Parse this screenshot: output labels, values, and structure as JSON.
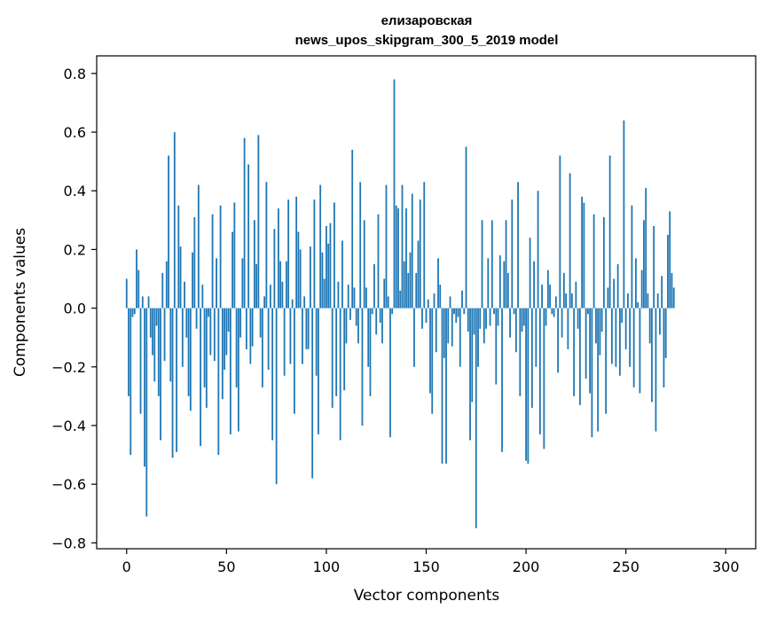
{
  "chart_data": {
    "type": "bar",
    "title_line1": "елизаровская",
    "title_line2": "news_upos_skipgram_300_5_2019 model",
    "xlabel": "Vector components",
    "ylabel": "Components values",
    "xlim": [
      -15,
      315
    ],
    "ylim": [
      -0.82,
      0.86
    ],
    "xticks": [
      0,
      50,
      100,
      150,
      200,
      250,
      300
    ],
    "xtick_labels": [
      "0",
      "50",
      "100",
      "150",
      "200",
      "250",
      "300"
    ],
    "yticks": [
      -0.8,
      -0.6,
      -0.4,
      -0.2,
      0.0,
      0.2,
      0.4,
      0.6,
      0.8
    ],
    "ytick_labels": [
      "−0.8",
      "−0.6",
      "−0.4",
      "−0.2",
      "0.0",
      "0.2",
      "0.4",
      "0.6",
      "0.8"
    ],
    "values": [
      0.1,
      -0.3,
      -0.5,
      -0.03,
      -0.02,
      0.2,
      0.13,
      -0.36,
      0.04,
      -0.54,
      -0.71,
      0.04,
      -0.1,
      -0.16,
      -0.25,
      -0.06,
      -0.3,
      -0.45,
      0.12,
      -0.18,
      0.16,
      0.52,
      -0.25,
      -0.51,
      0.6,
      -0.49,
      0.35,
      0.21,
      -0.2,
      0.09,
      -0.1,
      -0.3,
      -0.35,
      0.19,
      0.31,
      -0.07,
      0.42,
      -0.47,
      0.08,
      -0.27,
      -0.34,
      -0.03,
      -0.16,
      0.32,
      -0.18,
      0.17,
      -0.5,
      0.35,
      -0.31,
      -0.21,
      -0.16,
      -0.08,
      -0.43,
      0.26,
      0.36,
      -0.27,
      -0.42,
      -0.1,
      0.17,
      0.58,
      -0.14,
      0.49,
      -0.19,
      -0.13,
      0.3,
      0.15,
      0.59,
      -0.1,
      -0.27,
      0.04,
      0.43,
      -0.21,
      0.08,
      -0.45,
      0.27,
      -0.6,
      0.34,
      0.16,
      0.09,
      -0.23,
      0.16,
      0.37,
      -0.19,
      0.03,
      -0.36,
      0.38,
      0.26,
      0.2,
      -0.19,
      0.04,
      -0.14,
      -0.14,
      0.21,
      -0.58,
      0.37,
      -0.23,
      -0.43,
      0.42,
      0.19,
      0.1,
      0.28,
      0.22,
      0.29,
      -0.34,
      0.36,
      -0.3,
      0.09,
      -0.45,
      0.23,
      -0.28,
      -0.12,
      0.08,
      -0.04,
      0.54,
      0.07,
      -0.06,
      -0.12,
      0.43,
      -0.4,
      0.3,
      0.07,
      -0.2,
      -0.3,
      -0.02,
      0.15,
      -0.09,
      0.32,
      -0.05,
      -0.12,
      0.1,
      0.42,
      0.04,
      -0.44,
      -0.02,
      0.78,
      0.35,
      0.34,
      0.06,
      0.42,
      0.16,
      0.34,
      0.12,
      0.19,
      0.39,
      -0.2,
      0.12,
      0.23,
      0.37,
      -0.07,
      0.43
    ],
    "values2": [
      -0.05,
      0.03,
      -0.29,
      -0.36,
      0.05,
      -0.15,
      0.17,
      0.08,
      -0.53,
      -0.17,
      -0.53,
      -0.12,
      0.04,
      -0.13,
      -0.02,
      -0.05,
      -0.03,
      -0.2,
      0.06,
      -0.02,
      0.55,
      -0.08,
      -0.45,
      -0.32,
      -0.09,
      -0.75,
      -0.2,
      -0.07,
      0.3,
      -0.12,
      -0.07,
      0.17,
      -0.06,
      0.3,
      -0.02,
      -0.26,
      -0.06,
      0.18,
      -0.49,
      0.16,
      0.3,
      0.12,
      -0.1,
      0.37,
      -0.02,
      -0.15,
      0.43,
      -0.3,
      -0.08,
      -0.06,
      -0.52,
      -0.53,
      0.24,
      -0.34,
      0.16,
      -0.2,
      0.4,
      -0.43,
      0.08,
      -0.48,
      -0.06,
      0.13,
      0.08,
      -0.02,
      -0.03,
      0.04,
      -0.22,
      0.52,
      -0.1,
      0.12,
      0.05,
      -0.14,
      0.46,
      0.05,
      -0.3,
      0.09,
      -0.07,
      -0.33,
      0.38,
      0.36,
      -0.24,
      -0.02,
      -0.29,
      -0.44,
      0.32,
      -0.12,
      -0.42,
      -0.16,
      -0.08,
      0.31,
      -0.36,
      0.07,
      0.52,
      -0.19,
      0.1,
      -0.2,
      0.15,
      -0.23,
      -0.05,
      0.64,
      -0.14,
      0.05,
      -0.2,
      0.35,
      -0.27,
      0.17,
      0.02,
      -0.29,
      0.13,
      0.3,
      0.41,
      0.05,
      -0.12,
      -0.32,
      0.28,
      -0.42,
      0.05,
      -0.09,
      0.11,
      -0.27,
      -0.17,
      0.25,
      0.33,
      0.12,
      0.07
    ]
  }
}
